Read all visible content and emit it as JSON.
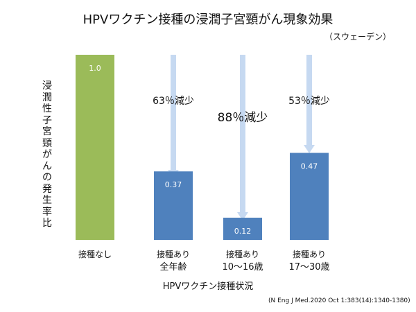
{
  "title": "HPVワクチン接種の浸潤子宮頸がん現象効果",
  "subtitle": "（スウェーデン）",
  "ylabel": "浸潤性子宮頸がんの発生率比",
  "xlabel": "HPVワクチン接種状況",
  "source": "(N Eng J Med.2020 Oct 1:383(14):1340-1380)",
  "colors": {
    "baseline_bar": "#9bbb59",
    "vaccinated_bar": "#4f81bd",
    "reduction_arrow": "#c6d9f1"
  },
  "chart_data": {
    "type": "bar",
    "categories": [
      [
        "接種なし"
      ],
      [
        "接種あり",
        "全年齢"
      ],
      [
        "接種あり",
        "10～16歳"
      ],
      [
        "接種あり",
        "17～30歳"
      ]
    ],
    "values": [
      1.0,
      0.37,
      0.12,
      0.47
    ],
    "data_labels": [
      "1.0",
      "0.37",
      "0.12",
      "0.47"
    ],
    "bar_colors": [
      "#9bbb59",
      "#4f81bd",
      "#4f81bd",
      "#4f81bd"
    ],
    "ylim": [
      0,
      1.0
    ],
    "grid": false,
    "annotations": [
      {
        "category_index": 1,
        "text": "63％減少"
      },
      {
        "category_index": 2,
        "text": "88％減少"
      },
      {
        "category_index": 3,
        "text": "53％減少"
      }
    ]
  }
}
